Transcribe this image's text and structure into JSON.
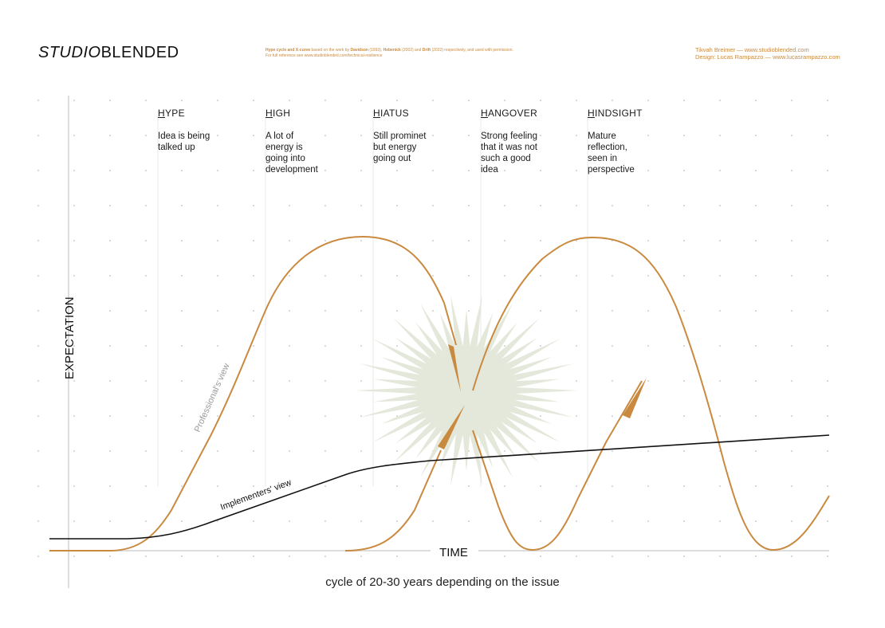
{
  "header": {
    "logo_italic": "STUDIO",
    "logo_regular": "BLENDED",
    "note_line1_bold1": "Hype cycle and X-curve",
    "note_line1_text1": " based on the work by ",
    "note_line1_bold2": "Davidson",
    "note_line1_text2": " (1993), ",
    "note_line1_bold3": "Hebenick",
    "note_line1_text3": " (2002) and ",
    "note_line1_bold4": "Drift",
    "note_line1_text4": " (2022) respectively, and used with permission.",
    "note_line2": "For full reference see www.studioblended.com/technical-resilience",
    "credit_line1": "Tikvah Breimer — www.studioblended.com",
    "credit_line2": "Design: Lucas Rampazzo — www.lucasrampazzo.com"
  },
  "phases": [
    {
      "initial": "H",
      "rest": "YPE",
      "desc": "Idea is being\ntalked up"
    },
    {
      "initial": "H",
      "rest": "IGH",
      "desc": "A lot of\nenergy is\ngoing into\ndevelopment"
    },
    {
      "initial": "H",
      "rest": "IATUS",
      "desc": "Still prominet\nbut energy\ngoing out"
    },
    {
      "initial": "H",
      "rest": "ANGOVER",
      "desc": "Strong feeling\nthat it was not\nsuch a good\nidea"
    },
    {
      "initial": "H",
      "rest": "INDSIGHT",
      "desc": "Mature\nreflection,\nseen in\nperspective"
    }
  ],
  "axes": {
    "y_label": "EXPECTATION",
    "x_label": "TIME"
  },
  "curve_labels": {
    "professional": "Professional's view",
    "implementers": "Implementers' view"
  },
  "footer": {
    "caption": "cycle of 20-30 years depending on the issue"
  },
  "colors": {
    "curve": "#c98a3f",
    "line": "#111111",
    "burst": "#e3e8da",
    "grid_dot": "#cfcfcf",
    "guide": "#e8e8e8"
  }
}
